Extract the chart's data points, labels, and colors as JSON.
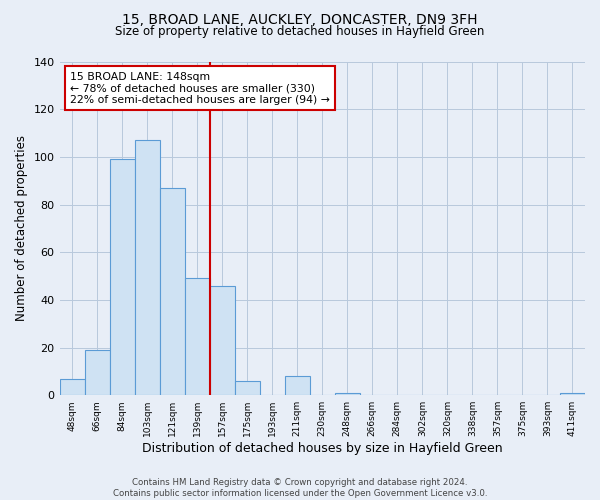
{
  "title1": "15, BROAD LANE, AUCKLEY, DONCASTER, DN9 3FH",
  "title2": "Size of property relative to detached houses in Hayfield Green",
  "xlabel": "Distribution of detached houses by size in Hayfield Green",
  "ylabel": "Number of detached properties",
  "bin_labels": [
    "48sqm",
    "66sqm",
    "84sqm",
    "103sqm",
    "121sqm",
    "139sqm",
    "157sqm",
    "175sqm",
    "193sqm",
    "211sqm",
    "230sqm",
    "248sqm",
    "266sqm",
    "284sqm",
    "302sqm",
    "320sqm",
    "338sqm",
    "357sqm",
    "375sqm",
    "393sqm",
    "411sqm"
  ],
  "bar_values": [
    7,
    19,
    99,
    107,
    87,
    49,
    46,
    6,
    0,
    8,
    0,
    1,
    0,
    0,
    0,
    0,
    0,
    0,
    0,
    0,
    1
  ],
  "bar_color": "#cfe2f3",
  "bar_edge_color": "#5b9bd5",
  "ylim": [
    0,
    140
  ],
  "yticks": [
    0,
    20,
    40,
    60,
    80,
    100,
    120,
    140
  ],
  "property_line_x": 5.5,
  "annotation_title": "15 BROAD LANE: 148sqm",
  "annotation_line1": "← 78% of detached houses are smaller (330)",
  "annotation_line2": "22% of semi-detached houses are larger (94) →",
  "vline_color": "#cc0000",
  "annotation_box_color": "#ffffff",
  "annotation_box_edge": "#cc0000",
  "footer1": "Contains HM Land Registry data © Crown copyright and database right 2024.",
  "footer2": "Contains public sector information licensed under the Open Government Licence v3.0.",
  "background_color": "#e8eef7",
  "plot_background": "#e8eef7",
  "grid_color": "#b8c8dc"
}
